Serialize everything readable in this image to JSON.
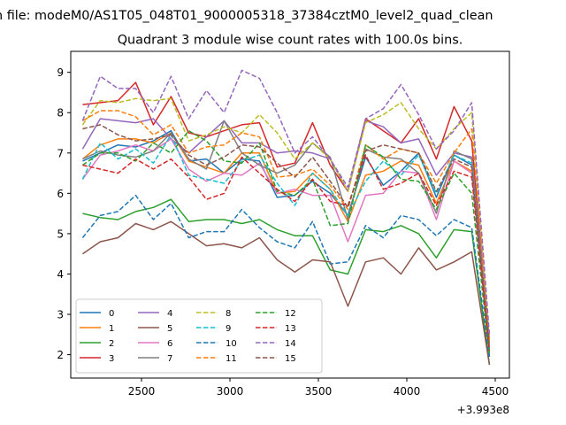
{
  "figure": {
    "suptitle": "n file: modeM0/AS1T05_048T01_9000005318_37384cztM0_level2_quad_clean",
    "offset_text": "+3.993e8"
  },
  "chart_data": {
    "type": "line",
    "title": "Quadrant 3 module wise count rates with 100.0s bins.",
    "xlabel": "",
    "ylabel": "",
    "x_offset": 399300000,
    "xlim": [
      2100,
      4580
    ],
    "ylim": [
      1.42,
      9.52
    ],
    "xticks": [
      2500,
      3000,
      3500,
      4000,
      4500
    ],
    "xtick_labels": [
      "2500",
      "3000",
      "3500",
      "4000",
      "4500"
    ],
    "yticks": [
      2,
      3,
      4,
      5,
      6,
      7,
      8,
      9
    ],
    "ytick_labels": [
      "2",
      "3",
      "4",
      "5",
      "6",
      "7",
      "8",
      "9"
    ],
    "grid": false,
    "legend": {
      "placement": "lower-left",
      "ncol": 4
    },
    "x": [
      2167,
      2267,
      2367,
      2467,
      2567,
      2667,
      2767,
      2867,
      2967,
      3067,
      3167,
      3267,
      3367,
      3467,
      3567,
      3667,
      3767,
      3867,
      3967,
      4067,
      4167,
      4267,
      4367,
      4467
    ],
    "series": [
      {
        "name": "0",
        "color": "#1f77b4",
        "dash": "solid",
        "values": [
          6.8,
          7.0,
          7.2,
          7.15,
          7.3,
          7.55,
          6.8,
          6.85,
          6.5,
          6.85,
          6.8,
          5.9,
          5.95,
          6.3,
          6.0,
          5.45,
          6.9,
          6.2,
          6.55,
          7.0,
          5.9,
          6.95,
          6.7,
          1.95
        ]
      },
      {
        "name": "1",
        "color": "#ff7f0e",
        "dash": "solid",
        "values": [
          6.85,
          7.2,
          7.35,
          7.35,
          7.25,
          7.5,
          6.8,
          6.65,
          6.5,
          7.0,
          7.0,
          6.0,
          6.05,
          6.5,
          6.1,
          5.3,
          6.45,
          6.55,
          6.8,
          6.7,
          5.75,
          6.8,
          6.55,
          2.05
        ]
      },
      {
        "name": "2",
        "color": "#2ca02c",
        "dash": "solid",
        "values": [
          5.5,
          5.4,
          5.35,
          5.55,
          5.65,
          5.85,
          5.3,
          5.35,
          5.35,
          5.25,
          5.35,
          5.1,
          4.95,
          4.95,
          4.1,
          4.0,
          5.1,
          5.05,
          5.2,
          5.0,
          4.4,
          5.1,
          5.05,
          1.75
        ]
      },
      {
        "name": "3",
        "color": "#d62728",
        "dash": "solid",
        "values": [
          8.2,
          8.25,
          8.3,
          8.75,
          7.7,
          8.4,
          7.5,
          7.4,
          7.55,
          7.7,
          7.75,
          6.65,
          6.75,
          7.75,
          6.7,
          6.05,
          7.85,
          7.55,
          7.25,
          7.85,
          6.85,
          8.15,
          7.3,
          2.3
        ]
      },
      {
        "name": "4",
        "color": "#9467bd",
        "dash": "solid",
        "values": [
          7.1,
          7.85,
          7.8,
          7.75,
          7.85,
          7.35,
          7.0,
          7.4,
          7.8,
          7.25,
          7.25,
          7.0,
          7.05,
          7.0,
          6.85,
          6.05,
          7.8,
          7.65,
          7.25,
          7.35,
          6.45,
          7.0,
          6.9,
          2.4
        ]
      },
      {
        "name": "5",
        "color": "#8c564b",
        "dash": "solid",
        "values": [
          4.5,
          4.8,
          4.9,
          5.25,
          5.1,
          5.3,
          5.0,
          4.7,
          4.75,
          4.65,
          4.9,
          4.35,
          4.05,
          4.35,
          4.3,
          3.2,
          4.3,
          4.4,
          4.0,
          4.65,
          4.1,
          4.3,
          4.55,
          1.75
        ]
      },
      {
        "name": "6",
        "color": "#e377c2",
        "dash": "solid",
        "values": [
          6.35,
          6.95,
          7.05,
          7.2,
          7.05,
          7.35,
          6.6,
          6.3,
          6.5,
          6.45,
          6.75,
          6.0,
          6.1,
          5.95,
          5.95,
          4.8,
          5.95,
          6.0,
          6.55,
          6.5,
          5.35,
          6.8,
          6.5,
          2.1
        ]
      },
      {
        "name": "7",
        "color": "#7f7f7f",
        "dash": "solid",
        "values": [
          6.85,
          7.05,
          6.95,
          6.9,
          7.05,
          7.5,
          6.85,
          6.6,
          7.8,
          7.0,
          6.7,
          6.5,
          6.7,
          7.25,
          6.9,
          5.35,
          7.1,
          6.9,
          6.85,
          6.5,
          5.5,
          7.05,
          6.85,
          2.15
        ]
      },
      {
        "name": "8",
        "color": "#bcbd22",
        "dash": "dashed",
        "values": [
          7.7,
          8.3,
          8.25,
          8.35,
          8.3,
          8.35,
          7.3,
          7.45,
          7.65,
          7.5,
          7.95,
          7.5,
          6.85,
          7.25,
          6.85,
          6.05,
          7.75,
          7.95,
          8.25,
          7.6,
          7.1,
          7.6,
          8.0,
          2.3
        ]
      },
      {
        "name": "9",
        "color": "#17becf",
        "dash": "dashed",
        "values": [
          6.35,
          7.25,
          6.85,
          7.1,
          6.75,
          7.45,
          6.45,
          6.35,
          6.25,
          6.8,
          6.95,
          6.25,
          5.7,
          6.5,
          6.1,
          5.45,
          6.3,
          6.8,
          6.45,
          6.95,
          6.0,
          6.95,
          6.75,
          2.1
        ]
      },
      {
        "name": "10",
        "color": "#1f77b4",
        "dash": "dashed",
        "values": [
          4.9,
          5.45,
          5.55,
          5.95,
          5.35,
          5.75,
          4.9,
          5.05,
          5.05,
          5.6,
          5.15,
          4.8,
          4.65,
          5.3,
          4.25,
          4.3,
          5.2,
          4.9,
          5.45,
          5.35,
          4.95,
          5.35,
          5.15,
          1.95
        ]
      },
      {
        "name": "11",
        "color": "#ff7f0e",
        "dash": "dashed",
        "values": [
          7.8,
          8.05,
          8.05,
          7.9,
          7.45,
          7.7,
          7.0,
          7.15,
          7.2,
          7.5,
          7.4,
          6.4,
          6.45,
          6.6,
          6.2,
          5.6,
          7.2,
          6.85,
          7.1,
          7.0,
          6.25,
          7.0,
          7.6,
          2.4
        ]
      },
      {
        "name": "12",
        "color": "#2ca02c",
        "dash": "dashed",
        "values": [
          6.7,
          7.0,
          7.0,
          6.8,
          7.25,
          7.0,
          7.55,
          7.3,
          6.8,
          6.75,
          7.25,
          6.05,
          5.95,
          6.35,
          5.2,
          5.25,
          7.2,
          6.9,
          6.35,
          6.3,
          5.6,
          6.5,
          6.0,
          2.0
        ]
      },
      {
        "name": "13",
        "color": "#d62728",
        "dash": "dashed",
        "values": [
          6.7,
          6.6,
          6.5,
          6.85,
          6.6,
          6.85,
          6.4,
          5.85,
          6.0,
          6.9,
          6.5,
          6.1,
          5.8,
          6.35,
          5.8,
          5.7,
          6.95,
          6.1,
          6.25,
          6.5,
          5.7,
          6.55,
          6.4,
          2.1
        ]
      },
      {
        "name": "14",
        "color": "#9467bd",
        "dash": "dashed",
        "values": [
          7.8,
          8.9,
          8.6,
          8.6,
          8.0,
          8.9,
          7.85,
          8.55,
          8.0,
          9.05,
          8.85,
          8.0,
          7.0,
          7.4,
          6.85,
          6.15,
          7.85,
          8.1,
          8.7,
          7.95,
          7.1,
          7.55,
          8.25,
          2.5
        ]
      },
      {
        "name": "15",
        "color": "#8c564b",
        "dash": "dashed",
        "values": [
          7.6,
          7.7,
          7.45,
          7.3,
          7.35,
          7.45,
          6.95,
          6.7,
          6.9,
          7.2,
          7.15,
          6.75,
          6.4,
          6.9,
          6.3,
          5.65,
          7.05,
          7.2,
          7.1,
          7.0,
          6.05,
          6.85,
          6.65,
          2.2
        ]
      }
    ]
  }
}
